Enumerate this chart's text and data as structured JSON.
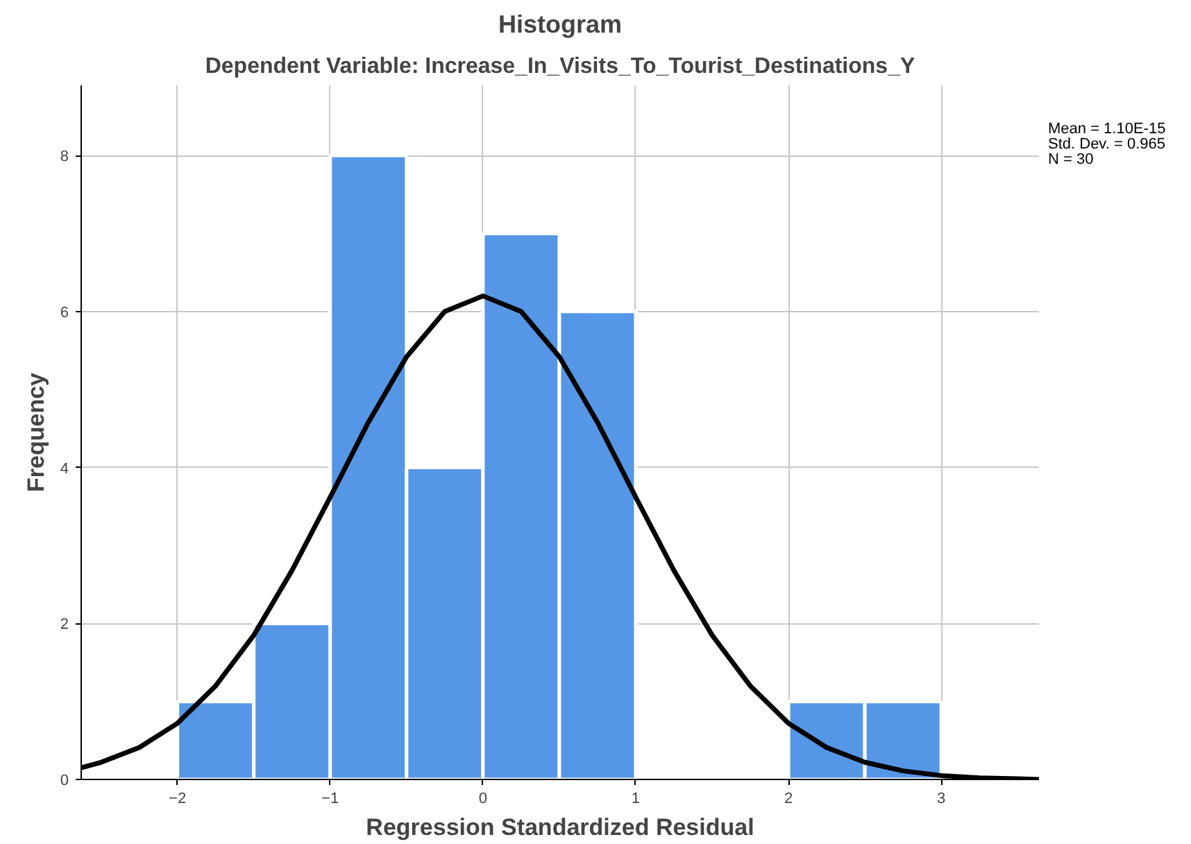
{
  "chart_data": {
    "type": "histogram",
    "title": "Histogram",
    "subtitle": "Dependent Variable: Increase_In_Visits_To_Tourist_Destinations_Y",
    "xlabel": "Regression Standardized Residual",
    "ylabel": "Frequency",
    "bins": [
      -2,
      -1.5,
      -1,
      -0.5,
      0,
      0.5,
      1,
      1.5,
      2,
      2.5,
      3
    ],
    "values": [
      1,
      2,
      8,
      4,
      7,
      6,
      0,
      0,
      1,
      1
    ],
    "color": "#5596e6",
    "series": [
      {
        "type": "line",
        "color": "#000000",
        "x": [
          -2.63,
          -2.5,
          -2.25,
          -2,
          -1.75,
          -1.5,
          -1.25,
          -1,
          -0.75,
          -0.5,
          -0.25,
          0,
          0.25,
          0.5,
          0.75,
          1,
          1.25,
          1.5,
          1.75,
          2,
          2.25,
          2.5,
          2.75,
          3,
          3.25,
          3.5,
          3.64
        ],
        "values": [
          0.15,
          0.22,
          0.41,
          0.72,
          1.2,
          1.85,
          2.68,
          3.62,
          4.58,
          5.42,
          6.0,
          6.2,
          6.0,
          5.42,
          4.58,
          3.62,
          2.68,
          1.85,
          1.2,
          0.72,
          0.41,
          0.22,
          0.11,
          0.05,
          0.02,
          0.01,
          0.0
        ]
      }
    ],
    "xlim": [
      -2.63,
      3.64
    ],
    "ylim": [
      0,
      8.9
    ],
    "xticks": [
      -2,
      -1,
      0,
      1,
      2,
      3
    ],
    "yticks": [
      0,
      2,
      4,
      6,
      8
    ],
    "grid": true,
    "annotations": [
      "Mean = 1.10E-15",
      "Std. Dev. = 0.965",
      "N = 30"
    ]
  }
}
